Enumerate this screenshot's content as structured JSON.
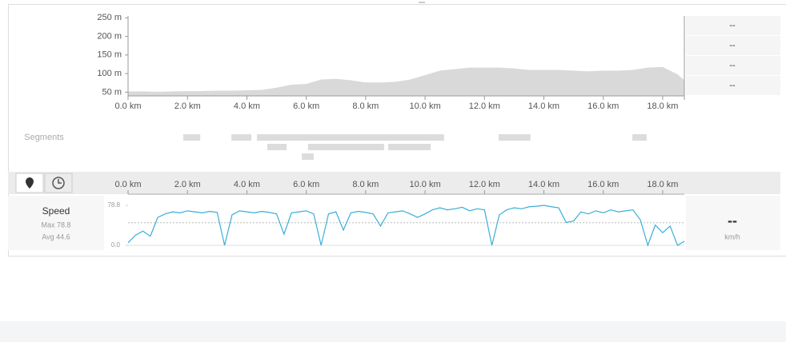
{
  "elevation_chart": {
    "type": "area",
    "x": [
      0,
      0.5,
      1,
      1.5,
      2,
      2.5,
      3,
      3.5,
      4,
      4.5,
      5,
      5.5,
      6,
      6.5,
      7,
      7.5,
      8,
      8.5,
      9,
      9.5,
      10,
      10.5,
      11,
      11.5,
      12,
      12.5,
      13,
      13.5,
      14,
      14.5,
      15,
      15.5,
      16,
      16.5,
      17,
      17.5,
      18,
      18.5,
      18.73
    ],
    "values": [
      52,
      52,
      51,
      52,
      53,
      53,
      54,
      54,
      55,
      56,
      62,
      70,
      72,
      84,
      86,
      82,
      76,
      76,
      78,
      84,
      96,
      108,
      112,
      116,
      116,
      116,
      114,
      110,
      110,
      110,
      108,
      106,
      108,
      108,
      110,
      116,
      118,
      98,
      82
    ],
    "color": "#d9d9d9",
    "xlim": [
      0,
      18.73
    ],
    "ylim": [
      40,
      255
    ],
    "xticks": [
      {
        "value": 0,
        "label": "0.0 km"
      },
      {
        "value": 2,
        "label": "2.0 km"
      },
      {
        "value": 4,
        "label": "4.0 km"
      },
      {
        "value": 6,
        "label": "6.0 km"
      },
      {
        "value": 8,
        "label": "8.0 km"
      },
      {
        "value": 10,
        "label": "10.0 km"
      },
      {
        "value": 12,
        "label": "12.0 km"
      },
      {
        "value": 14,
        "label": "14.0 km"
      },
      {
        "value": 16,
        "label": "16.0 km"
      },
      {
        "value": 18,
        "label": "18.0 km"
      }
    ],
    "yticks": [
      {
        "value": 50,
        "label": "50 m"
      },
      {
        "value": 100,
        "label": "100 m"
      },
      {
        "value": 150,
        "label": "150 m"
      },
      {
        "value": 200,
        "label": "200 m"
      },
      {
        "value": 250,
        "label": "250 m"
      }
    ]
  },
  "right_stats": [
    "--",
    "--",
    "--",
    "--"
  ],
  "segments": {
    "label": "Segments",
    "color": "#dcdcdc",
    "rows": [
      [
        [
          1.86,
          2.43
        ],
        [
          3.48,
          4.15
        ],
        [
          4.34,
          10.64
        ],
        [
          12.48,
          13.55
        ],
        [
          16.98,
          17.46
        ]
      ],
      [
        [
          4.69,
          5.34
        ],
        [
          6.06,
          8.62
        ],
        [
          8.76,
          10.19
        ]
      ],
      [
        [
          5.85,
          6.25
        ]
      ]
    ]
  },
  "speed_chart": {
    "type": "line",
    "label": "Speed",
    "max_label": "Max 78.8",
    "avg_label": "Avg 44.6",
    "color": "#3aaed8",
    "x": [
      0,
      0.25,
      0.5,
      0.75,
      1,
      1.25,
      1.5,
      1.75,
      2,
      2.25,
      2.5,
      2.75,
      3,
      3.25,
      3.5,
      3.75,
      4,
      4.25,
      4.5,
      4.75,
      5,
      5.25,
      5.5,
      5.75,
      6,
      6.25,
      6.5,
      6.75,
      7,
      7.25,
      7.5,
      7.75,
      8,
      8.25,
      8.5,
      8.75,
      9,
      9.25,
      9.5,
      9.75,
      10,
      10.25,
      10.5,
      10.75,
      11,
      11.25,
      11.5,
      11.75,
      12,
      12.25,
      12.5,
      12.75,
      13,
      13.25,
      13.5,
      13.75,
      14,
      14.25,
      14.5,
      14.75,
      15,
      15.25,
      15.5,
      15.75,
      16,
      16.25,
      16.5,
      16.75,
      17,
      17.25,
      17.5,
      17.75,
      18,
      18.25,
      18.5,
      18.73
    ],
    "values": [
      5,
      20,
      28,
      18,
      55,
      62,
      66,
      64,
      68,
      66,
      64,
      67,
      65,
      0,
      60,
      68,
      66,
      64,
      67,
      65,
      62,
      22,
      64,
      66,
      68,
      62,
      0,
      62,
      66,
      30,
      64,
      67,
      65,
      62,
      38,
      64,
      66,
      68,
      62,
      55,
      62,
      70,
      74,
      70,
      72,
      75,
      68,
      72,
      70,
      0,
      60,
      70,
      74,
      72,
      76,
      77,
      78.8,
      76,
      74,
      45,
      48,
      66,
      62,
      68,
      64,
      70,
      66,
      68,
      70,
      50,
      0,
      40,
      25,
      38,
      0,
      8
    ],
    "xlim": [
      0,
      18.73
    ],
    "ylim": [
      0,
      78.8
    ],
    "yticks": [
      {
        "value": 0,
        "label": "0.0"
      },
      78.8
    ],
    "reference_line": 44.6,
    "current_value": "--",
    "unit": "km/h"
  }
}
